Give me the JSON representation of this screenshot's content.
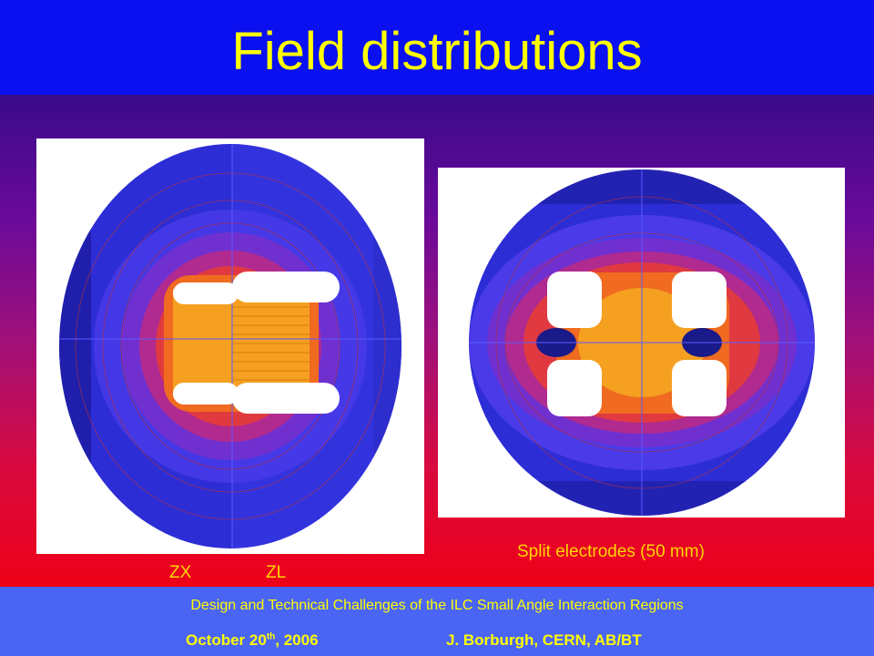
{
  "slide": {
    "title": "Field distributions",
    "captions": {
      "zx": "ZX",
      "zl": "ZL",
      "split": "Split electrodes (50 mm)"
    },
    "footer": {
      "line1": "Design and Technical Challenges of the ILC Small Angle Interaction Regions",
      "date_main": "October 20",
      "date_sup": "th",
      "date_year": ", 2006",
      "author": "J. Borburgh, CERN, AB/BT"
    }
  },
  "colors": {
    "title": "#ffff00",
    "header_bg": "#0a10f0",
    "footer_bg": "#4a64f4",
    "caption": "#ffd700",
    "field_low": "#2a2ad8",
    "field_high": "#f5a020"
  },
  "figures": [
    {
      "name": "zx-zl-field-map",
      "icon": "field-map-image"
    },
    {
      "name": "split-electrodes-field-map",
      "icon": "field-map-image"
    }
  ]
}
